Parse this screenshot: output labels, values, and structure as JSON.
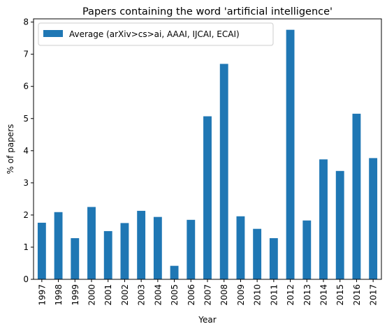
{
  "chart_data": {
    "type": "bar",
    "title": "Papers containing the word 'artificial intelligence'",
    "xlabel": "Year",
    "ylabel": "% of papers",
    "ylim": [
      0,
      8.1
    ],
    "yticks": [
      "0",
      "1",
      "2",
      "3",
      "4",
      "5",
      "6",
      "7",
      "8"
    ],
    "categories": [
      "1997",
      "1998",
      "1999",
      "2000",
      "2001",
      "2002",
      "2003",
      "2004",
      "2005",
      "2006",
      "2007",
      "2008",
      "2009",
      "2010",
      "2011",
      "2012",
      "2013",
      "2014",
      "2015",
      "2016",
      "2017"
    ],
    "series": [
      {
        "name": "Average (arXiv>cs>ai, AAAI, IJCAI, ECAI)",
        "color": "#1f77b4",
        "values": [
          1.76,
          2.09,
          1.28,
          2.25,
          1.5,
          1.75,
          2.13,
          1.94,
          0.42,
          1.85,
          5.07,
          6.7,
          1.96,
          1.57,
          1.28,
          7.76,
          1.83,
          3.73,
          3.37,
          5.15,
          3.77
        ]
      }
    ],
    "legend": "top-left",
    "grid": false
  }
}
